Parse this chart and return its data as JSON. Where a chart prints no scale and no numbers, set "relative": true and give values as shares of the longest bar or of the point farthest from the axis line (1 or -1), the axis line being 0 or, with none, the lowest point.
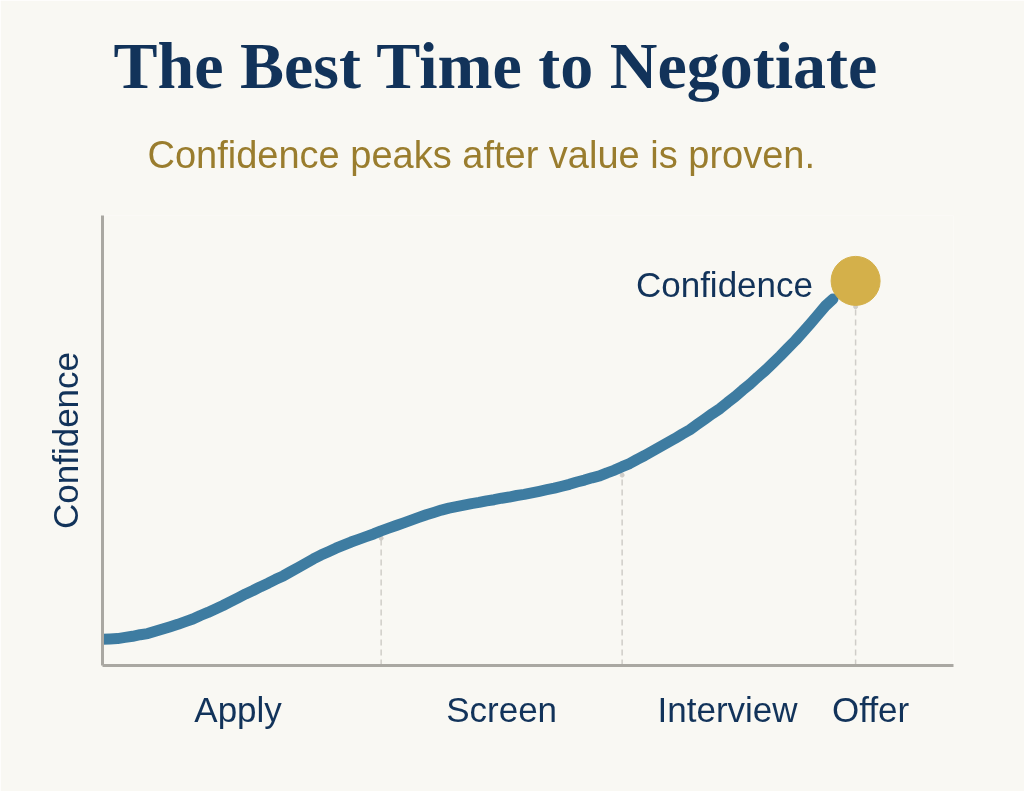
{
  "chart_data": {
    "type": "line",
    "title": "The Best Time to Negotiate",
    "subtitle": "Confidence peaks after value is proven.",
    "ylabel": "Confidence",
    "relative": true,
    "categories": [
      null,
      null,
      null,
      null,
      null,
      null,
      null,
      null,
      null,
      null,
      null,
      null,
      null,
      null,
      null,
      null,
      null,
      null,
      "Apply",
      null,
      null,
      null,
      null,
      null,
      null,
      null,
      null,
      null,
      null,
      null,
      null,
      null,
      null,
      null,
      null,
      null,
      null,
      null,
      null,
      null,
      null,
      null,
      null,
      null,
      null,
      null,
      null,
      null,
      null,
      null,
      null,
      null,
      null,
      "Screen",
      null,
      null,
      null,
      null,
      null,
      null,
      null,
      null,
      null,
      null,
      null,
      null,
      null,
      null,
      null,
      null,
      null,
      null,
      null,
      null,
      null,
      null,
      null,
      null,
      null,
      null,
      null,
      null,
      null,
      "Interview",
      null,
      null,
      null,
      null,
      null,
      null,
      null,
      null,
      null,
      null,
      null,
      null,
      null,
      null,
      null,
      null,
      null,
      null,
      "Offer",
      null,
      null,
      null,
      null,
      null,
      null,
      null,
      null,
      null,
      null,
      null
    ],
    "series": [
      {
        "type": "lollipop",
        "marker": "circle",
        "line_style": "dashed",
        "color": "#cfcdc8",
        "values": [
          null,
          null,
          null,
          null,
          null,
          null,
          null,
          null,
          null,
          null,
          null,
          null,
          null,
          null,
          null,
          null,
          null,
          null,
          null,
          null,
          null,
          null,
          null,
          null,
          null,
          null,
          null,
          null,
          null,
          null,
          null,
          null,
          null,
          null,
          null,
          null,
          null,
          0.331,
          null,
          null,
          null,
          null,
          null,
          null,
          null,
          null,
          null,
          null,
          null,
          null,
          null,
          null,
          null,
          null,
          null,
          null,
          null,
          null,
          null,
          null,
          null,
          null,
          null,
          null,
          null,
          null,
          null,
          null,
          null,
          0.495,
          null,
          null,
          null,
          null,
          null,
          null,
          null,
          null,
          null,
          null,
          null,
          null,
          null,
          null,
          null,
          null,
          null,
          null,
          null,
          null,
          null,
          null,
          null,
          null,
          null,
          null,
          null,
          null,
          null,
          null,
          0.933,
          null,
          null,
          null,
          null,
          null,
          null,
          null,
          null,
          null,
          null,
          null,
          null,
          null
        ]
      },
      {
        "name": "Confidence",
        "color": "#3e7ca1",
        "values": [
          0.068,
          0.069,
          0.07,
          0.073,
          0.076,
          0.08,
          0.083,
          0.089,
          0.095,
          0.101,
          0.107,
          0.114,
          0.121,
          0.13,
          0.138,
          0.147,
          0.156,
          0.166,
          0.176,
          0.186,
          0.195,
          0.205,
          0.214,
          0.224,
          0.233,
          0.244,
          0.255,
          0.266,
          0.277,
          0.287,
          0.296,
          0.305,
          0.313,
          0.321,
          0.328,
          0.335,
          0.342,
          0.35,
          0.357,
          0.364,
          0.371,
          0.378,
          0.385,
          0.392,
          0.398,
          0.404,
          0.409,
          0.413,
          0.417,
          0.421,
          0.424,
          0.428,
          0.431,
          0.435,
          0.438,
          0.442,
          0.445,
          0.449,
          0.453,
          0.457,
          0.461,
          0.466,
          0.471,
          0.477,
          0.482,
          0.488,
          0.493,
          0.501,
          0.508,
          0.517,
          0.525,
          0.536,
          0.546,
          0.557,
          0.568,
          0.579,
          0.59,
          0.602,
          0.613,
          0.627,
          0.641,
          0.655,
          0.668,
          0.684,
          0.699,
          0.716,
          0.732,
          0.75,
          0.767,
          0.786,
          0.805,
          0.825,
          0.845,
          0.867,
          0.889,
          0.912,
          0.935,
          0.953,
          null,
          null,
          null,
          null,
          null,
          null,
          null,
          null,
          null,
          null,
          null,
          null,
          null,
          null,
          null,
          null
        ]
      },
      {
        "type": "scatter",
        "marker": "circle",
        "color": "#d4b04a",
        "values": [
          null,
          null,
          null,
          null,
          null,
          null,
          null,
          null,
          null,
          null,
          null,
          null,
          null,
          null,
          null,
          null,
          null,
          null,
          null,
          null,
          null,
          null,
          null,
          null,
          null,
          null,
          null,
          null,
          null,
          null,
          null,
          null,
          null,
          null,
          null,
          null,
          null,
          null,
          null,
          null,
          null,
          null,
          null,
          null,
          null,
          null,
          null,
          null,
          null,
          null,
          null,
          null,
          null,
          null,
          null,
          null,
          null,
          null,
          null,
          null,
          null,
          null,
          null,
          null,
          null,
          null,
          null,
          null,
          null,
          null,
          null,
          null,
          null,
          null,
          null,
          null,
          null,
          null,
          null,
          null,
          null,
          null,
          null,
          null,
          null,
          null,
          null,
          null,
          null,
          null,
          null,
          null,
          null,
          null,
          null,
          null,
          null,
          null,
          null,
          null,
          1.0,
          null,
          null,
          null,
          null,
          null,
          null,
          null,
          null,
          null,
          null,
          null,
          null,
          null
        ]
      }
    ]
  }
}
